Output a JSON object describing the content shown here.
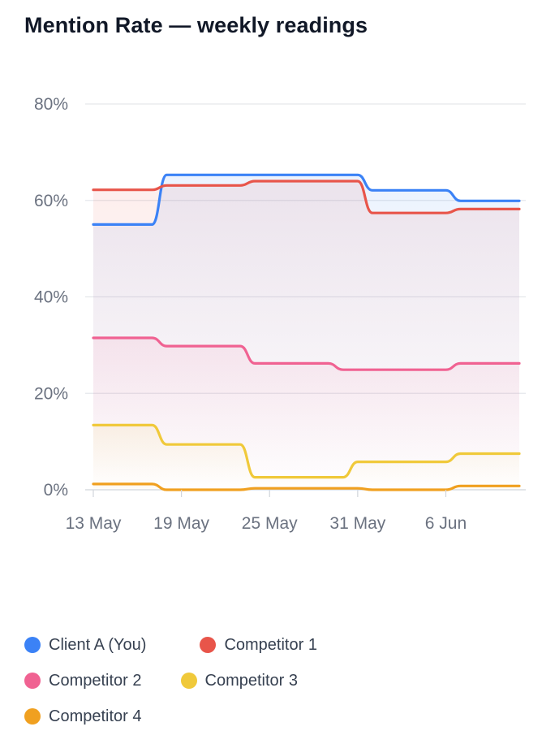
{
  "title": "Mention Rate — weekly readings",
  "chart_data": {
    "type": "line",
    "title": "Mention Rate — weekly readings",
    "xlabel": "",
    "ylabel": "",
    "x_ticks": [
      "13 May",
      "19 May",
      "25 May",
      "31 May",
      "6 Jun"
    ],
    "y_ticks": [
      "0%",
      "20%",
      "40%",
      "60%",
      "80%"
    ],
    "ylim": [
      0,
      80
    ],
    "grid": true,
    "legend_position": "bottom",
    "x_range": [
      "13 May",
      "11 Jun"
    ],
    "series": [
      {
        "name": "Client A (You)",
        "color": "#3b82f6",
        "dates": [
          "13 May",
          "17 May",
          "18 May",
          "31 May",
          "1 Jun",
          "6 Jun",
          "7 Jun",
          "11 Jun"
        ],
        "values": [
          55,
          55,
          65.3,
          65.3,
          62.1,
          62.1,
          59.9,
          59.9
        ]
      },
      {
        "name": "Competitor 1",
        "color": "#e8554a",
        "dates": [
          "13 May",
          "17 May",
          "18 May",
          "23 May",
          "24 May",
          "31 May",
          "1 Jun",
          "6 Jun",
          "7 Jun",
          "11 Jun"
        ],
        "values": [
          62.2,
          62.2,
          63.1,
          63.1,
          64,
          64,
          57.4,
          57.4,
          58.2,
          58.2
        ]
      },
      {
        "name": "Competitor 2",
        "color": "#f06292",
        "dates": [
          "13 May",
          "17 May",
          "18 May",
          "23 May",
          "24 May",
          "29 May",
          "30 May",
          "6 Jun",
          "7 Jun",
          "11 Jun"
        ],
        "values": [
          31.5,
          31.5,
          29.8,
          29.8,
          26.2,
          26.2,
          24.9,
          24.9,
          26.2,
          26.2
        ]
      },
      {
        "name": "Competitor 3",
        "color": "#f0c93a",
        "dates": [
          "13 May",
          "17 May",
          "18 May",
          "23 May",
          "24 May",
          "30 May",
          "31 May",
          "6 Jun",
          "7 Jun",
          "11 Jun"
        ],
        "values": [
          13.4,
          13.4,
          9.4,
          9.4,
          2.6,
          2.6,
          5.8,
          5.8,
          7.5,
          7.5
        ]
      },
      {
        "name": "Competitor 4",
        "color": "#f0a020",
        "dates": [
          "13 May",
          "17 May",
          "18 May",
          "23 May",
          "24 May",
          "31 May",
          "1 Jun",
          "6 Jun",
          "7 Jun",
          "11 Jun"
        ],
        "values": [
          1.2,
          1.2,
          0.0,
          0.0,
          0.3,
          0.3,
          0.0,
          0.0,
          0.8,
          0.8
        ]
      }
    ]
  },
  "legend": [
    {
      "label": "Client A (You)",
      "color": "#3b82f6"
    },
    {
      "label": "Competitor 1",
      "color": "#e8554a"
    },
    {
      "label": "Competitor 2",
      "color": "#f06292"
    },
    {
      "label": "Competitor 3",
      "color": "#f0c93a"
    },
    {
      "label": "Competitor 4",
      "color": "#f0a020"
    }
  ]
}
